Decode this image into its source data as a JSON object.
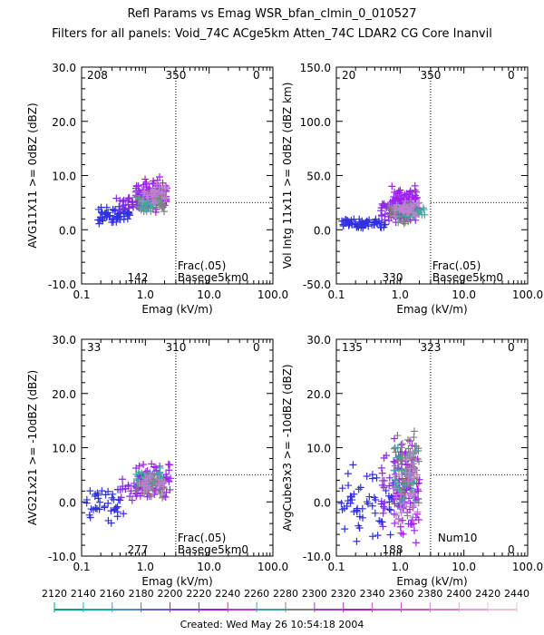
{
  "header": {
    "title": "Refl Params vs Emag    WSR_bfan_clmin_0_010527",
    "subtitle": "Filters for all panels:  Void_74C ACge5km Atten_74C LDAR2 CG Core Inanvil"
  },
  "footer": {
    "created": "Created: Wed May 26 10:54:18 2004"
  },
  "colorbar": {
    "ticks": [
      "2120",
      "2140",
      "2160",
      "2180",
      "2200",
      "2220",
      "2240",
      "2260",
      "2280",
      "2300",
      "2320",
      "2340",
      "2360",
      "2380",
      "2400",
      "2420",
      "2440"
    ],
    "colors": [
      "#00a080",
      "#10b0a8",
      "#5090c0",
      "#6060d0",
      "#8040d8",
      "#a020e0",
      "#b040d0",
      "#40a0a0",
      "#808080",
      "#a040c0",
      "#b020c0",
      "#c050c8",
      "#c060c0",
      "#d080d0",
      "#e0a0d0",
      "#f0c0d8"
    ]
  },
  "chart_data": [
    {
      "type": "scatter",
      "title": "",
      "xlabel": "Emag (kV/m)",
      "ylabel": "AVG11X11 >= 0dBZ (dBZ)",
      "xscale": "log",
      "xlim": [
        0.1,
        100.0
      ],
      "ylim": [
        -10.0,
        30.0
      ],
      "xticks": [
        "0.1",
        "1.0",
        "10.0",
        "100.0"
      ],
      "yticks": [
        "-10.0",
        "0.0",
        "10.0",
        "20.0",
        "30.0"
      ],
      "reference_lines": {
        "x": 3.0,
        "y": 5.0
      },
      "annotations": {
        "top_left": "208",
        "top_mid": "350",
        "top_right": "0",
        "bottom_mid": "142",
        "lower_right_1": "Frac(.05)",
        "lower_right_2": "Basege5km0"
      },
      "clusters": [
        {
          "color": "#3030e0",
          "x_range": [
            0.18,
            0.6
          ],
          "y_range": [
            1.0,
            4.5
          ],
          "n": 55
        },
        {
          "color": "#8a2be2",
          "x_range": [
            0.35,
            0.8
          ],
          "y_range": [
            3.0,
            7.0
          ],
          "n": 25
        },
        {
          "color": "#a020f0",
          "x_range": [
            0.7,
            2.2
          ],
          "y_range": [
            3.0,
            10.0
          ],
          "n": 95
        },
        {
          "color": "#808080",
          "x_range": [
            0.7,
            2.0
          ],
          "y_range": [
            2.0,
            8.0
          ],
          "n": 45
        },
        {
          "color": "#40a8a0",
          "x_range": [
            0.8,
            1.8
          ],
          "y_range": [
            3.0,
            7.0
          ],
          "n": 20
        },
        {
          "color": "#c080d0",
          "x_range": [
            0.9,
            2.2
          ],
          "y_range": [
            4.0,
            9.0
          ],
          "n": 25
        }
      ]
    },
    {
      "type": "scatter",
      "title": "",
      "xlabel": "Emag (kV/m)",
      "ylabel": "Vol Intg 11x11 >= 0dBZ (dBZ km)",
      "xscale": "log",
      "xlim": [
        0.1,
        100.0
      ],
      "ylim": [
        -50.0,
        150.0
      ],
      "xticks": [
        "0.1",
        "1.0",
        "10.0",
        "100.0"
      ],
      "yticks": [
        "-50.0",
        "0.0",
        "50.0",
        "100.0",
        "150.0"
      ],
      "reference_lines": {
        "x": 3.0,
        "y": 25.0
      },
      "annotations": {
        "top_left": "20",
        "top_mid": "350",
        "top_right": "0",
        "bottom_mid": "330",
        "lower_right_1": "Frac(.05)",
        "lower_right_2": "Basege5km0"
      },
      "clusters": [
        {
          "color": "#3030e0",
          "x_range": [
            0.12,
            0.6
          ],
          "y_range": [
            0.0,
            12.0
          ],
          "n": 60
        },
        {
          "color": "#8a2be2",
          "x_range": [
            0.5,
            1.5
          ],
          "y_range": [
            5.0,
            28.0
          ],
          "n": 50
        },
        {
          "color": "#a020f0",
          "x_range": [
            0.7,
            2.0
          ],
          "y_range": [
            8.0,
            42.0
          ],
          "n": 90
        },
        {
          "color": "#808080",
          "x_range": [
            0.7,
            2.0
          ],
          "y_range": [
            5.0,
            25.0
          ],
          "n": 50
        },
        {
          "color": "#40a8a0",
          "x_range": [
            0.8,
            2.5
          ],
          "y_range": [
            10.0,
            25.0
          ],
          "n": 25
        },
        {
          "color": "#c080d0",
          "x_range": [
            0.8,
            2.0
          ],
          "y_range": [
            10.0,
            30.0
          ],
          "n": 30
        }
      ]
    },
    {
      "type": "scatter",
      "title": "",
      "xlabel": "Emag (kV/m)",
      "ylabel": "AVG21x21 >= -10dBZ (dBZ)",
      "xscale": "log",
      "xlim": [
        0.1,
        100.0
      ],
      "ylim": [
        -10.0,
        30.0
      ],
      "xticks": [
        "0.1",
        "1.0",
        "10.0",
        "100.0"
      ],
      "yticks": [
        "-10.0",
        "0.0",
        "10.0",
        "20.0",
        "30.0"
      ],
      "reference_lines": {
        "x": 3.0,
        "y": 5.0
      },
      "annotations": {
        "top_left": "33",
        "top_mid": "310",
        "top_right": "0",
        "bottom_mid": "277",
        "lower_right_1": "Frac(.05)",
        "lower_right_2": "Basege5km0"
      },
      "clusters": [
        {
          "color": "#3030e0",
          "x_range": [
            0.12,
            0.5
          ],
          "y_range": [
            -5.0,
            2.5
          ],
          "n": 40
        },
        {
          "color": "#8a2be2",
          "x_range": [
            0.4,
            1.2
          ],
          "y_range": [
            0.0,
            6.0
          ],
          "n": 35
        },
        {
          "color": "#a020f0",
          "x_range": [
            0.7,
            2.5
          ],
          "y_range": [
            0.0,
            8.0
          ],
          "n": 70
        },
        {
          "color": "#808080",
          "x_range": [
            0.7,
            2.0
          ],
          "y_range": [
            0.5,
            6.0
          ],
          "n": 45
        },
        {
          "color": "#40a8a0",
          "x_range": [
            0.7,
            1.8
          ],
          "y_range": [
            2.0,
            7.0
          ],
          "n": 20
        },
        {
          "color": "#c080d0",
          "x_range": [
            0.8,
            2.0
          ],
          "y_range": [
            1.0,
            6.0
          ],
          "n": 20
        }
      ]
    },
    {
      "type": "scatter",
      "title": "",
      "xlabel": "Emag (kV/m)",
      "ylabel": "AvgCube3x3 >= -10dBZ (dBZ)",
      "xscale": "log",
      "xlim": [
        0.1,
        100.0
      ],
      "ylim": [
        -10.0,
        30.0
      ],
      "xticks": [
        "0.1",
        "1.0",
        "10.0",
        "100.0"
      ],
      "yticks": [
        "-10.0",
        "0.0",
        "10.0",
        "20.0",
        "30.0"
      ],
      "reference_lines": {
        "x": 3.0,
        "y": 5.0
      },
      "annotations": {
        "top_left": "135",
        "top_mid": "323",
        "top_right": "0",
        "bottom_mid": "188",
        "lower_right_1": "Num10",
        "lower_right_2": "",
        "bottom_right": "0"
      },
      "clusters": [
        {
          "color": "#3030e0",
          "x_range": [
            0.1,
            0.8
          ],
          "y_range": [
            -8.0,
            8.0
          ],
          "n": 55
        },
        {
          "color": "#8a2be2",
          "x_range": [
            0.5,
            1.5
          ],
          "y_range": [
            -7.0,
            12.0
          ],
          "n": 55
        },
        {
          "color": "#a020f0",
          "x_range": [
            0.8,
            2.0
          ],
          "y_range": [
            -9.0,
            13.0
          ],
          "n": 85
        },
        {
          "color": "#808080",
          "x_range": [
            0.8,
            2.0
          ],
          "y_range": [
            -3.0,
            14.0
          ],
          "n": 60
        },
        {
          "color": "#40a8a0",
          "x_range": [
            0.8,
            1.8
          ],
          "y_range": [
            -3.0,
            12.0
          ],
          "n": 25
        },
        {
          "color": "#c080d0",
          "x_range": [
            0.8,
            2.0
          ],
          "y_range": [
            -5.0,
            10.0
          ],
          "n": 30
        }
      ]
    }
  ]
}
